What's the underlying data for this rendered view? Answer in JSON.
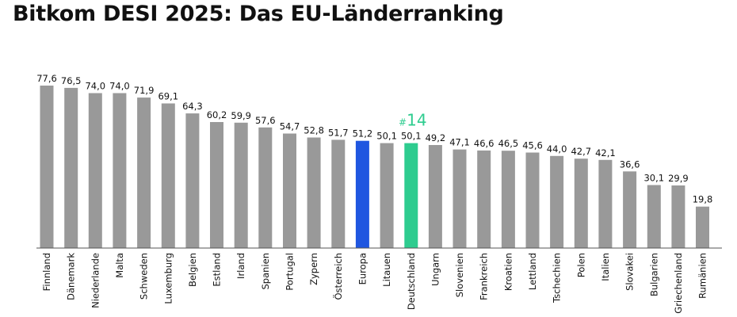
{
  "chart_data": {
    "type": "bar",
    "title": "Bitkom DESI 2025: Das EU-Länderranking",
    "categories": [
      "Finnland",
      "Dänemark",
      "Niederlande",
      "Malta",
      "Schweden",
      "Luxemburg",
      "Belgien",
      "Estland",
      "Irland",
      "Spanien",
      "Portugal",
      "Zypern",
      "Österreich",
      "Europa",
      "Litauen",
      "Deutschland",
      "Ungarn",
      "Slovenien",
      "Frankreich",
      "Kroatien",
      "Lettland",
      "Tschechien",
      "Polen",
      "Italien",
      "Slovakei",
      "Bulgarien",
      "Griechenland",
      "Rumänien"
    ],
    "values": [
      77.6,
      76.5,
      74.0,
      74.0,
      71.9,
      69.1,
      64.3,
      60.2,
      59.9,
      57.6,
      54.7,
      52.8,
      51.7,
      51.2,
      50.1,
      50.1,
      49.2,
      47.1,
      46.6,
      46.5,
      45.6,
      44.0,
      42.7,
      42.1,
      36.6,
      30.1,
      29.9,
      19.8
    ],
    "value_labels": [
      "77,6",
      "76,5",
      "74,0",
      "74,0",
      "71,9",
      "69,1",
      "64,3",
      "60,2",
      "59,9",
      "57,6",
      "54,7",
      "52,8",
      "51,7",
      "51,2",
      "50,1",
      "50,1",
      "49,2",
      "47,1",
      "46,6",
      "46,5",
      "45,6",
      "44,0",
      "42,7",
      "42,1",
      "36,6",
      "30,1",
      "29,9",
      "19,8"
    ],
    "ylim": [
      0,
      80
    ],
    "grid": false,
    "colors": {
      "default": "#999999",
      "europe": "#1f56e0",
      "germany": "#2ecc8f"
    },
    "highlights": [
      {
        "category": "Europa",
        "color": "#1f56e0"
      },
      {
        "category": "Deutschland",
        "color": "#2ecc8f",
        "annotation_hash": "#",
        "annotation_rank": "14"
      }
    ]
  }
}
